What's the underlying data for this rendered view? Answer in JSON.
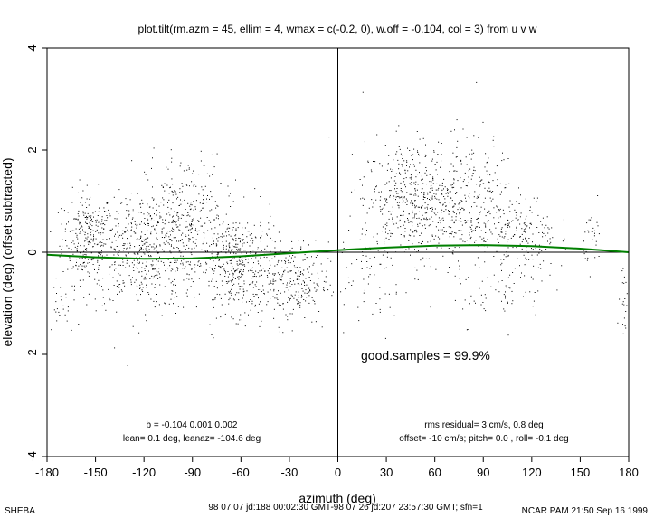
{
  "chart_data": {
    "type": "scatter",
    "title": "plot.tilt(rm.azm = 45, ellim = 4, wmax = c(-0.2, 0), w.off = -0.104, col = 3) from u v w",
    "xlabel": "azimuth (deg)",
    "ylabel": "elevation (deg)  (offset subtracted)",
    "xlim": [
      -180,
      180
    ],
    "ylim": [
      -4,
      4
    ],
    "x_ticks": [
      "-180",
      "-150",
      "-120",
      "-90",
      "-60",
      "-30",
      "0",
      "30",
      "60",
      "90",
      "120",
      "150",
      "180"
    ],
    "y_ticks": [
      "-4",
      "-2",
      "0",
      "2",
      "4"
    ],
    "grid": false,
    "reference_lines": [
      {
        "name": "zero-elevation",
        "axis": "y",
        "value": 0
      },
      {
        "name": "zero-azimuth",
        "axis": "x",
        "value": 0
      }
    ],
    "point_color": "#000000",
    "fit_color": "#008000",
    "fit_curve": {
      "x": [
        -180,
        -150,
        -120,
        -90,
        -60,
        -30,
        0,
        30,
        60,
        90,
        120,
        150,
        180
      ],
      "y": [
        -0.05,
        -0.1,
        -0.13,
        -0.12,
        -0.08,
        -0.02,
        0.04,
        0.09,
        0.13,
        0.14,
        0.12,
        0.07,
        0.0
      ]
    },
    "point_clusters": [
      {
        "cx": -155,
        "cy": 0.3,
        "sx": 8,
        "sy": 0.45,
        "n": 260
      },
      {
        "cx": -120,
        "cy": 0.0,
        "sx": 18,
        "sy": 0.55,
        "n": 520
      },
      {
        "cx": -95,
        "cy": 0.7,
        "sx": 12,
        "sy": 0.6,
        "n": 260
      },
      {
        "cx": -62,
        "cy": -0.2,
        "sx": 12,
        "sy": 0.5,
        "n": 420
      },
      {
        "cx": -30,
        "cy": -0.6,
        "sx": 12,
        "sy": 0.4,
        "n": 260
      },
      {
        "cx": -172,
        "cy": -1.0,
        "sx": 5,
        "sy": 0.3,
        "n": 25
      },
      {
        "cx": 45,
        "cy": 1.0,
        "sx": 15,
        "sy": 0.6,
        "n": 480
      },
      {
        "cx": 80,
        "cy": 1.0,
        "sx": 15,
        "sy": 0.65,
        "n": 340
      },
      {
        "cx": 115,
        "cy": 0.3,
        "sx": 10,
        "sy": 0.4,
        "n": 160
      },
      {
        "cx": 100,
        "cy": -0.8,
        "sx": 15,
        "sy": 0.3,
        "n": 60
      },
      {
        "cx": 158,
        "cy": 0.3,
        "sx": 3,
        "sy": 0.3,
        "n": 30
      },
      {
        "cx": 177,
        "cy": -1.1,
        "sx": 2,
        "sy": 0.3,
        "n": 20
      },
      {
        "cx": 20,
        "cy": -0.5,
        "sx": 10,
        "sy": 0.6,
        "n": 60
      }
    ],
    "annotations": {
      "good_samples": "good.samples = 99.9%",
      "fit_b": "b = -0.104  0.001  0.002",
      "fit_lean": "lean= 0.1 deg, leanaz= -104.6 deg",
      "rms": "rms residual= 3 cm/s, 0.8 deg",
      "offsets": "offset= -10 cm/s; pitch=  0.0 , roll= -0.1 deg"
    }
  },
  "footer": {
    "left": "SHEBA",
    "center": "98 07 07 jd:188 00:02:30 GMT-98 07 26 jd:207 23:57:30 GMT; sfn=1",
    "right": "NCAR PAM 21:50 Sep 16 1999"
  }
}
